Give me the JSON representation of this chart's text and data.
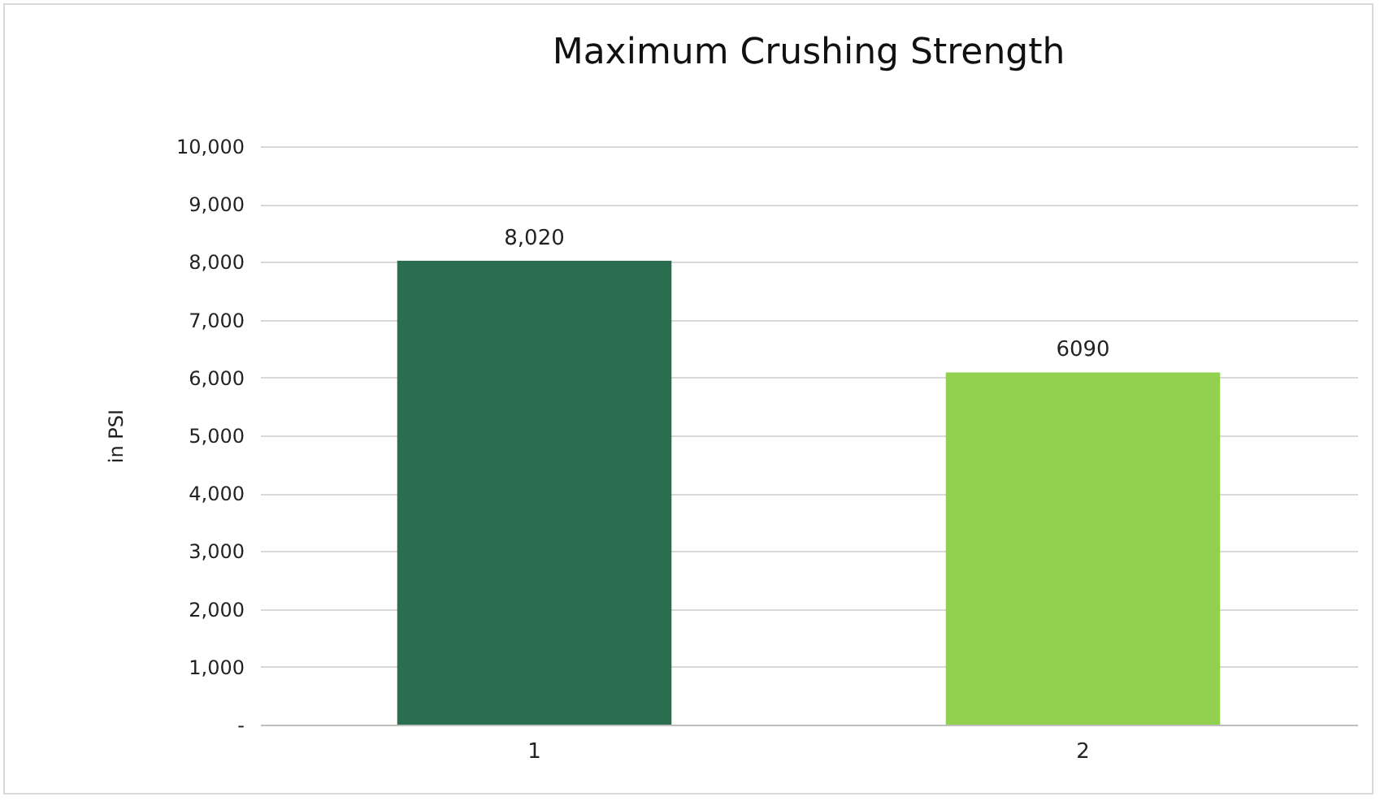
{
  "chart_data": {
    "type": "bar",
    "title": "Maximum Crushing Strength",
    "ylabel": "in PSI",
    "categories": [
      "1",
      "2"
    ],
    "values": [
      8020,
      6090
    ],
    "colors": [
      "#2a6e4f",
      "#92d050"
    ],
    "value_labels": [
      "8,020",
      "6090"
    ],
    "ylim": [
      0,
      10000
    ],
    "yticks": [
      {
        "value": 0,
        "label": "-"
      },
      {
        "value": 1000,
        "label": "1,000"
      },
      {
        "value": 2000,
        "label": "2,000"
      },
      {
        "value": 3000,
        "label": "3,000"
      },
      {
        "value": 4000,
        "label": "4,000"
      },
      {
        "value": 5000,
        "label": "5,000"
      },
      {
        "value": 6000,
        "label": "6,000"
      },
      {
        "value": 7000,
        "label": "7,000"
      },
      {
        "value": 8000,
        "label": "8,000"
      },
      {
        "value": 9000,
        "label": "9,000"
      },
      {
        "value": 10000,
        "label": "10,000"
      }
    ],
    "grid": "y"
  }
}
